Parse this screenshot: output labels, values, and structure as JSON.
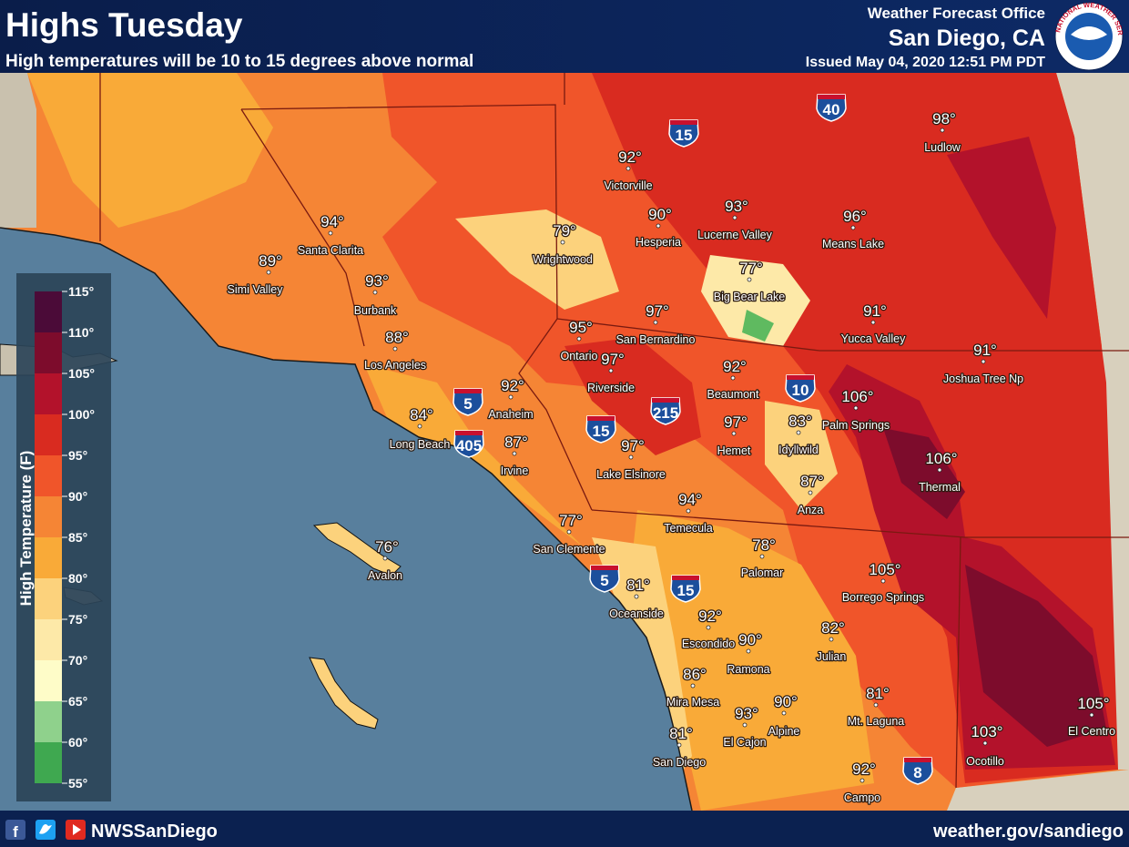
{
  "header": {
    "title": "Highs Tuesday",
    "subtitle": "High temperatures will be 10 to 15 degrees above normal",
    "office": "Weather Forecast Office",
    "location": "San Diego, CA",
    "issued": "Issued May 04, 2020 12:51 PM PDT",
    "logo_text": "NATIONAL WEATHER SERVICE"
  },
  "legend": {
    "title": "High Temperature (F)",
    "ticks": [
      "115°",
      "110°",
      "105°",
      "100°",
      "95°",
      "90°",
      "85°",
      "80°",
      "75°",
      "70°",
      "65°",
      "60°",
      "55°"
    ],
    "colors": [
      "#4b0b38",
      "#7d0c2c",
      "#b3122b",
      "#d92b20",
      "#f0552a",
      "#f58535",
      "#f9aa38",
      "#fcd27c",
      "#fde9a8",
      "#fefcc8",
      "#8fd18c",
      "#3fa850"
    ]
  },
  "cities": [
    {
      "name": "Ludlow",
      "temp": "98°"
    },
    {
      "name": "Victorville",
      "temp": "92°"
    },
    {
      "name": "Hesperia",
      "temp": "90°"
    },
    {
      "name": "Lucerne Valley",
      "temp": "93°"
    },
    {
      "name": "Means Lake",
      "temp": "96°"
    },
    {
      "name": "Santa Clarita",
      "temp": "94°"
    },
    {
      "name": "Wrightwood",
      "temp": "79°"
    },
    {
      "name": "Simi Valley",
      "temp": "89°"
    },
    {
      "name": "Big Bear Lake",
      "temp": "77°"
    },
    {
      "name": "Burbank",
      "temp": "93°"
    },
    {
      "name": "Yucca Valley",
      "temp": "91°"
    },
    {
      "name": "Ontario",
      "temp": "95°"
    },
    {
      "name": "San Bernardino",
      "temp": "97°"
    },
    {
      "name": "Los Angeles",
      "temp": "88°"
    },
    {
      "name": "Riverside",
      "temp": "97°"
    },
    {
      "name": "Joshua Tree Np",
      "temp": "91°"
    },
    {
      "name": "Beaumont",
      "temp": "92°"
    },
    {
      "name": "Anaheim",
      "temp": "92°"
    },
    {
      "name": "Palm Springs",
      "temp": "106°"
    },
    {
      "name": "Long Beach",
      "temp": "84°"
    },
    {
      "name": "Hemet",
      "temp": "97°"
    },
    {
      "name": "Idyllwild",
      "temp": "83°"
    },
    {
      "name": "Irvine",
      "temp": "87°"
    },
    {
      "name": "Lake Elsinore",
      "temp": "97°"
    },
    {
      "name": "Thermal",
      "temp": "106°"
    },
    {
      "name": "Anza",
      "temp": "87°"
    },
    {
      "name": "Temecula",
      "temp": "94°"
    },
    {
      "name": "San Clemente",
      "temp": "77°"
    },
    {
      "name": "Avalon",
      "temp": "76°"
    },
    {
      "name": "Palomar",
      "temp": "78°"
    },
    {
      "name": "Borrego Springs",
      "temp": "105°"
    },
    {
      "name": "Oceanside",
      "temp": "81°"
    },
    {
      "name": "Escondido",
      "temp": "92°"
    },
    {
      "name": "Julian",
      "temp": "82°"
    },
    {
      "name": "Ramona",
      "temp": "90°"
    },
    {
      "name": "Mira Mesa",
      "temp": "86°"
    },
    {
      "name": "Mt. Laguna",
      "temp": "81°"
    },
    {
      "name": "El Centro",
      "temp": "105°"
    },
    {
      "name": "El Cajon",
      "temp": "93°"
    },
    {
      "name": "Alpine",
      "temp": "90°"
    },
    {
      "name": "Ocotillo",
      "temp": "103°"
    },
    {
      "name": "San Diego",
      "temp": "81°"
    },
    {
      "name": "Campo",
      "temp": "92°"
    }
  ],
  "shields": [
    "15",
    "40",
    "5",
    "405",
    "15",
    "215",
    "10",
    "5",
    "15",
    "8"
  ],
  "footer": {
    "handle": "NWSSanDiego",
    "url": "weather.gov/sandiego"
  }
}
